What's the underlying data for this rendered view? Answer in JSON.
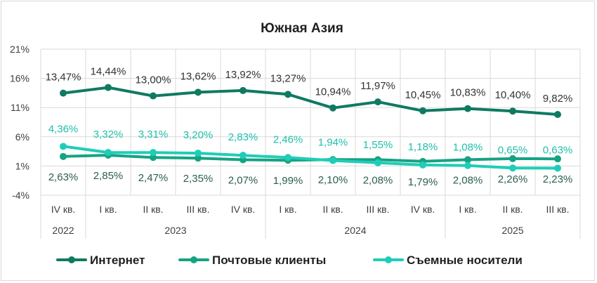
{
  "chart_data": {
    "type": "line",
    "title": "Южная Азия",
    "y_ticks": [
      "21%",
      "16%",
      "11%",
      "6%",
      "1%",
      "-4%"
    ],
    "ylim": [
      -4,
      21
    ],
    "grid": true,
    "categories": [
      "IV кв.",
      "I кв.",
      "II кв.",
      "III кв.",
      "IV кв.",
      "I кв.",
      "II кв.",
      "III кв.",
      "IV кв.",
      "I кв.",
      "II кв.",
      "III кв."
    ],
    "years": [
      {
        "label": "2022",
        "span": 1
      },
      {
        "label": "2023",
        "span": 4
      },
      {
        "label": "2024",
        "span": 4
      },
      {
        "label": "2025",
        "span": 3
      }
    ],
    "legend_position": "bottom",
    "series": [
      {
        "name": "Интернет",
        "color": "#0f7a62",
        "values": [
          13.47,
          14.44,
          13.0,
          13.62,
          13.92,
          13.27,
          10.94,
          11.97,
          10.45,
          10.83,
          10.4,
          9.82
        ],
        "labels": [
          "13,47%",
          "14,44%",
          "13,00%",
          "13,62%",
          "13,92%",
          "13,27%",
          "10,94%",
          "11,97%",
          "10,45%",
          "10,83%",
          "10,40%",
          "9,82%"
        ]
      },
      {
        "name": "Почтовые клиенты",
        "color": "#16a383",
        "values": [
          2.63,
          2.85,
          2.47,
          2.35,
          2.07,
          1.99,
          2.1,
          2.08,
          1.79,
          2.08,
          2.26,
          2.23
        ],
        "labels": [
          "2,63%",
          "2,85%",
          "2,47%",
          "2,35%",
          "2,07%",
          "1,99%",
          "2,10%",
          "2,08%",
          "1,79%",
          "2,08%",
          "2,26%",
          "2,23%"
        ]
      },
      {
        "name": "Съемные носители",
        "color": "#1fcdb8",
        "values": [
          4.36,
          3.32,
          3.31,
          3.2,
          2.83,
          2.46,
          1.94,
          1.55,
          1.18,
          1.08,
          0.65,
          0.63
        ],
        "labels": [
          "4,36%",
          "3,32%",
          "3,31%",
          "3,20%",
          "2,83%",
          "2,46%",
          "1,94%",
          "1,55%",
          "1,18%",
          "1,08%",
          "0,65%",
          "0,63%"
        ]
      }
    ]
  }
}
